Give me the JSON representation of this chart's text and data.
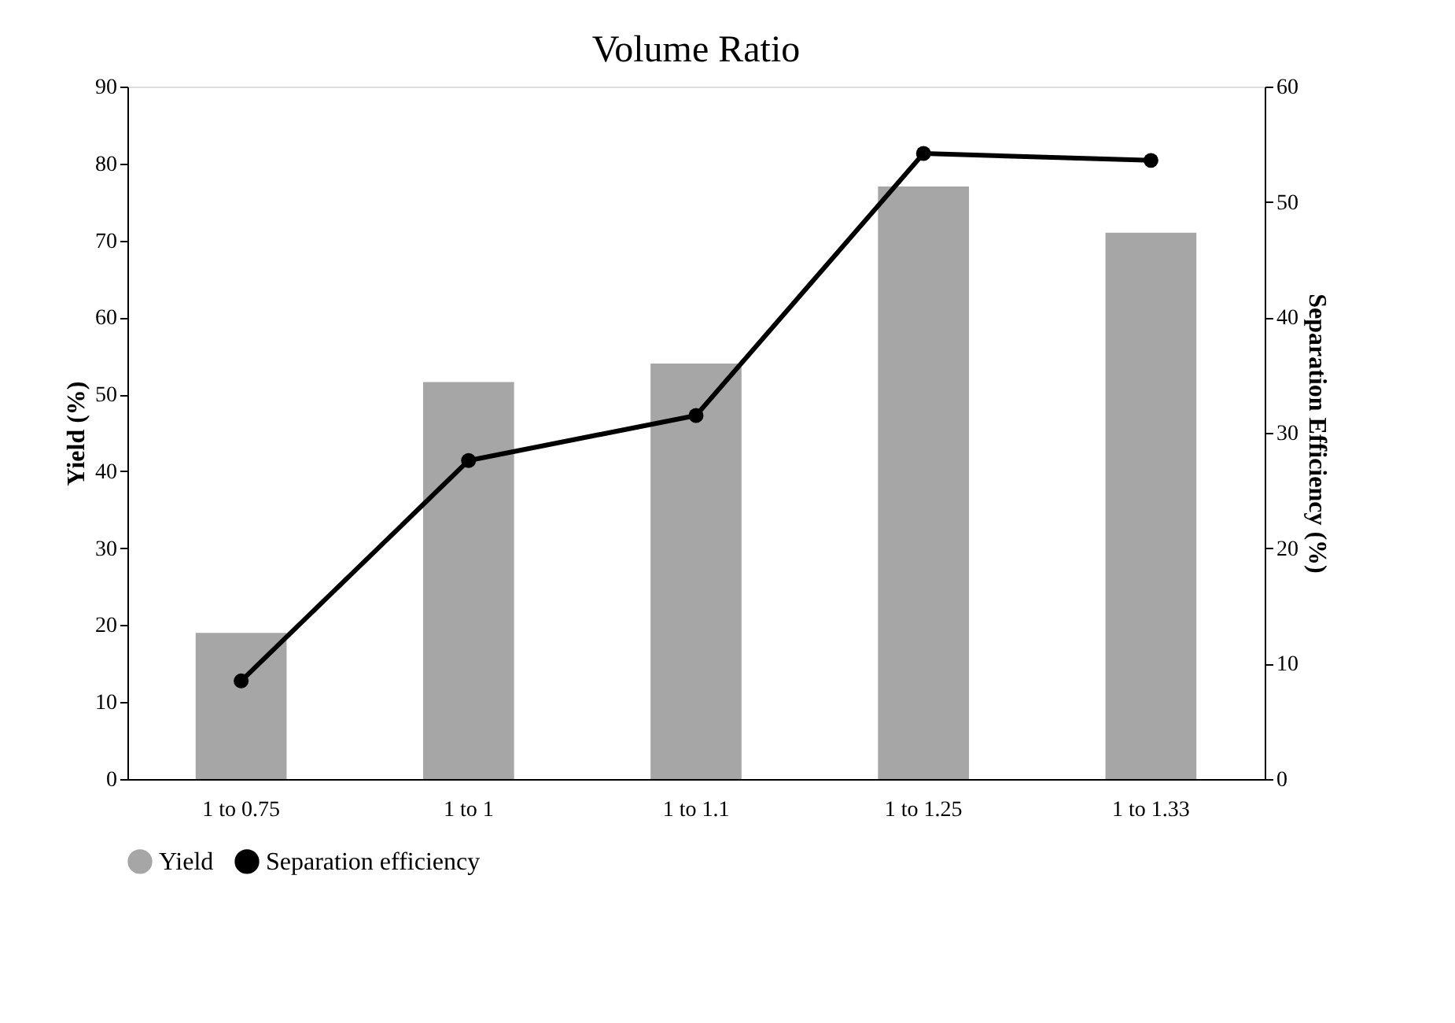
{
  "chart_data": {
    "type": "bar",
    "title": "Volume Ratio",
    "ylabel": "Yield  (%)",
    "y2label": "Separation Efficiency (%)",
    "categories": [
      "1 to 0.75",
      "1 to 1",
      "1 to 1.1",
      "1 to 1.25",
      "1 to 1.33"
    ],
    "series": [
      {
        "name": "Yield",
        "color": "#a6a6a6",
        "values": [
          19,
          51.6,
          54,
          77,
          71
        ]
      },
      {
        "name": "Separation efficiency",
        "type": "line",
        "axis": "y2",
        "color": "#000000",
        "marker": "circle",
        "values": [
          8.5,
          27.6,
          31.5,
          54.2,
          53.6
        ]
      }
    ],
    "ylim": [
      0,
      90
    ],
    "yticks": [
      0,
      10,
      20,
      30,
      40,
      50,
      60,
      70,
      80,
      90
    ],
    "y2lim": [
      0,
      60
    ],
    "y2ticks": [
      0,
      10,
      20,
      30,
      40,
      50,
      60
    ],
    "grid": false,
    "legend": "bottom"
  }
}
